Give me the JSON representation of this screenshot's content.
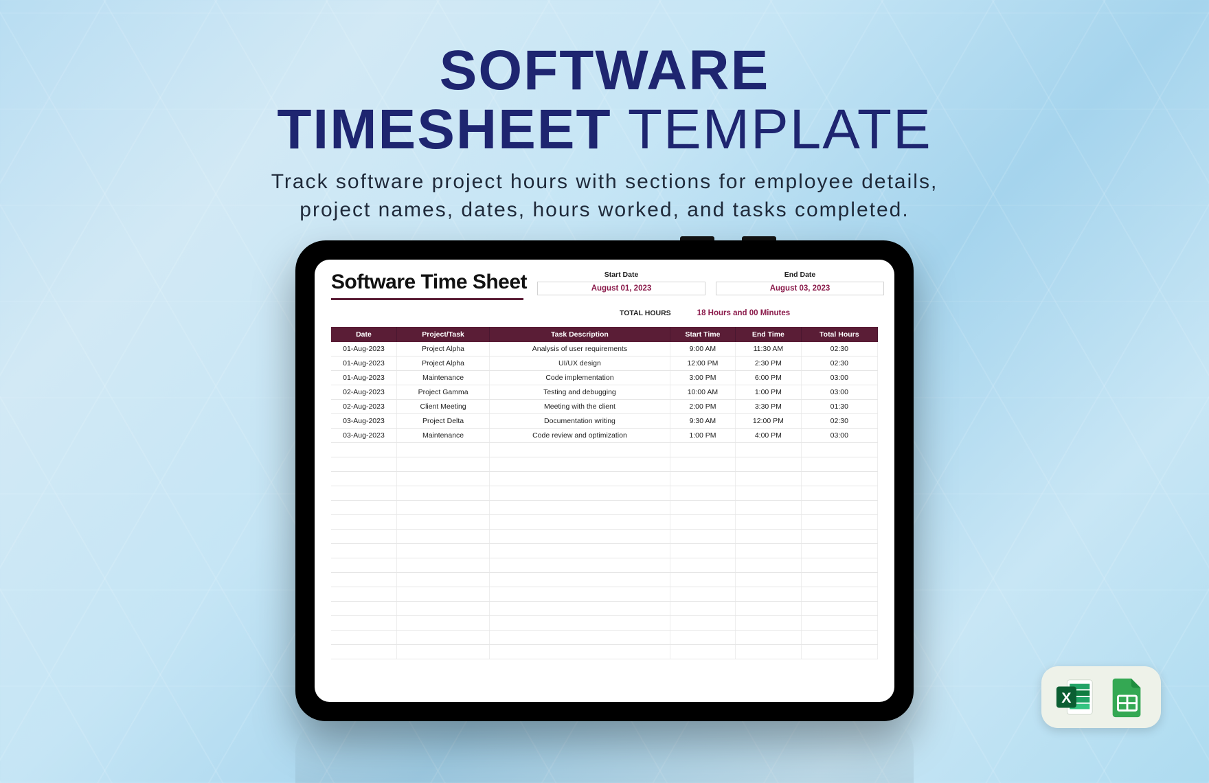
{
  "headline": {
    "line1_bold": "SOFTWARE",
    "line2_bold": "TIMESHEET",
    "line2_light": " TEMPLATE",
    "bold_color": "#1e2570",
    "light_color": "#1e2570",
    "font_size_pt": 62
  },
  "subtitle": {
    "text_line1": "Track software project hours with sections for employee details,",
    "text_line2": "project names, dates, hours worked, and tasks completed.",
    "color": "#1f2a3a",
    "font_size_pt": 22
  },
  "sheet": {
    "title": "Software Time Sheet",
    "title_rule_color": "#5a1d36",
    "start_date_label": "Start Date",
    "start_date_value": "August 01, 2023",
    "end_date_label": "End Date",
    "end_date_value": "August 03, 2023",
    "total_hours_label": "TOTAL HOURS",
    "total_hours_value": "18 Hours and 00 Minutes",
    "date_value_color": "#8a1a4a"
  },
  "table": {
    "type": "table",
    "header_bg": "#5a1d36",
    "header_fg": "#ffffff",
    "row_border_color": "#e6e6e6",
    "columns": [
      "Date",
      "Project/Task",
      "Task Description",
      "Start Time",
      "End Time",
      "Total Hours"
    ],
    "col_widths_pct": [
      12,
      17,
      33,
      12,
      12,
      14
    ],
    "rows": [
      [
        "01-Aug-2023",
        "Project Alpha",
        "Analysis of user requirements",
        "9:00 AM",
        "11:30 AM",
        "02:30"
      ],
      [
        "01-Aug-2023",
        "Project Alpha",
        "UI/UX design",
        "12:00 PM",
        "2:30 PM",
        "02:30"
      ],
      [
        "01-Aug-2023",
        "Maintenance",
        "Code implementation",
        "3:00 PM",
        "6:00 PM",
        "03:00"
      ],
      [
        "02-Aug-2023",
        "Project Gamma",
        "Testing and debugging",
        "10:00 AM",
        "1:00 PM",
        "03:00"
      ],
      [
        "02-Aug-2023",
        "Client Meeting",
        "Meeting with the client",
        "2:00 PM",
        "3:30 PM",
        "01:30"
      ],
      [
        "03-Aug-2023",
        "Project Delta",
        "Documentation writing",
        "9:30 AM",
        "12:00 PM",
        "02:30"
      ],
      [
        "03-Aug-2023",
        "Maintenance",
        "Code review and optimization",
        "1:00 PM",
        "4:00 PM",
        "03:00"
      ]
    ],
    "empty_row_count": 15
  },
  "icons": {
    "excel": {
      "name": "excel-icon",
      "bg": "#1f7244",
      "fg": "#ffffff"
    },
    "sheets": {
      "name": "google-sheets-icon",
      "bg": "#34a853",
      "fg": "#ffffff"
    }
  },
  "background": {
    "gradient_colors": [
      "#b8ddf2",
      "#d2e9f5",
      "#c5e5f5",
      "#a5d4ed",
      "#c8e6f5",
      "#addbf0"
    ]
  }
}
